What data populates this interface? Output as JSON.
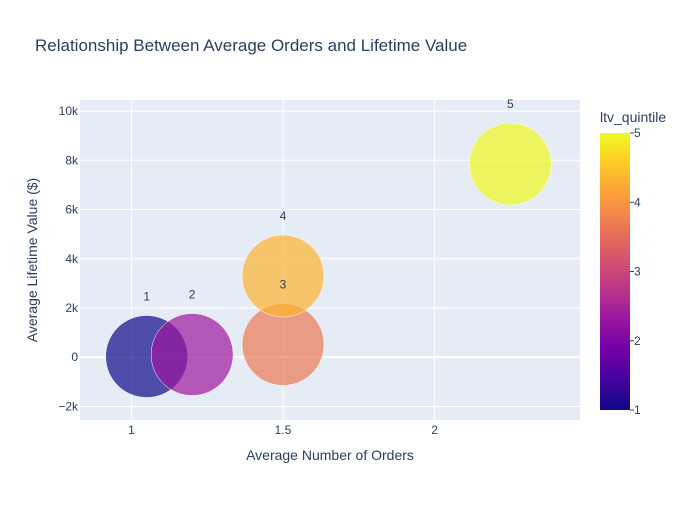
{
  "chart_data": {
    "type": "scatter",
    "title": "Relationship Between Average Orders and Lifetime Value",
    "xlabel": "Average Number of Orders",
    "ylabel": "Average Lifetime Value ($)",
    "xlim": [
      0.83,
      2.48
    ],
    "ylim": [
      -2550,
      10450
    ],
    "xticks": [
      1,
      1.5,
      2
    ],
    "xtick_labels": [
      "1",
      "1.5",
      "2"
    ],
    "yticks": [
      -2000,
      0,
      2000,
      4000,
      6000,
      8000,
      10000
    ],
    "ytick_labels": [
      "−2k",
      "0",
      "2k",
      "4k",
      "6k",
      "8k",
      "10k"
    ],
    "grid": true,
    "points": [
      {
        "label": "1",
        "x": 1.05,
        "y": 30,
        "ltv_quintile": 1,
        "color": "#0d0887"
      },
      {
        "label": "2",
        "x": 1.2,
        "y": 110,
        "ltv_quintile": 2,
        "color": "#9c179e"
      },
      {
        "label": "3",
        "x": 1.5,
        "y": 520,
        "ltv_quintile": 3,
        "color": "#ed7953"
      },
      {
        "label": "4",
        "x": 1.5,
        "y": 3300,
        "ltv_quintile": 4,
        "color": "#fdb42f"
      },
      {
        "label": "5",
        "x": 2.25,
        "y": 7850,
        "ltv_quintile": 5,
        "color": "#f0f921"
      }
    ],
    "colorbar": {
      "title": "ltv_quintile",
      "min": 1,
      "max": 5,
      "ticks": [
        1,
        2,
        3,
        4,
        5
      ],
      "colorscale": [
        "#0d0887",
        "#46039f",
        "#7201a8",
        "#9c179e",
        "#bd3786",
        "#d8576b",
        "#ed7953",
        "#fb9f3a",
        "#fdca26",
        "#f0f921"
      ]
    },
    "colors": {
      "plot_bg": "#e5ecf6",
      "grid": "#ffffff",
      "text": "#2a3f5f"
    }
  }
}
